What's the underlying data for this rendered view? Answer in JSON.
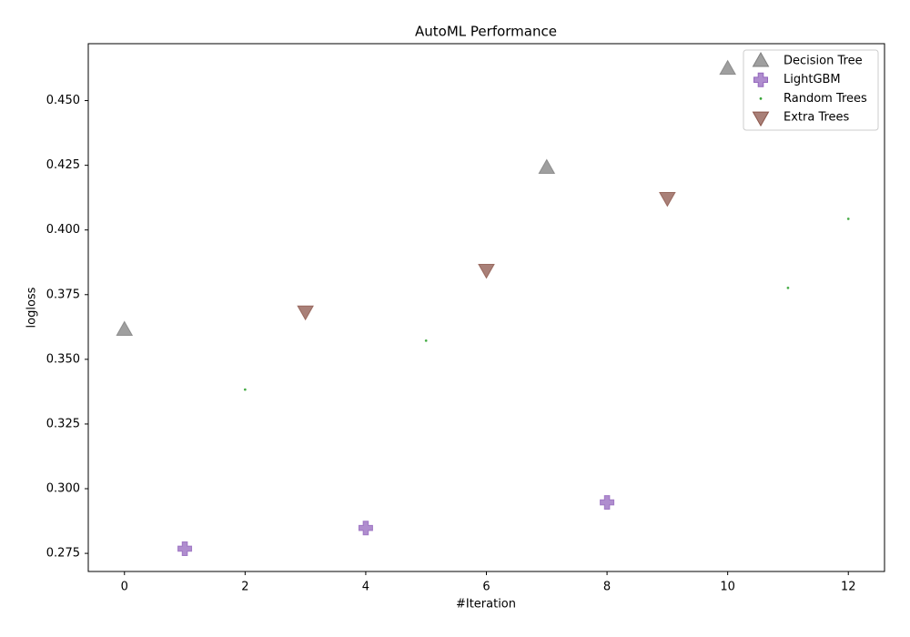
{
  "chart_data": {
    "type": "scatter",
    "title": "AutoML Performance",
    "x_label": "#Iteration",
    "y_label": "logloss",
    "xlim": [
      -0.6,
      12.6
    ],
    "xticks": [
      0,
      2,
      4,
      6,
      8,
      10,
      12
    ],
    "ylim": [
      0.268,
      0.472
    ],
    "yticks": [
      0.275,
      {
        "value": 0.3,
        "label": "0.300"
      },
      0.325,
      {
        "value": 0.35,
        "label": "0.350"
      },
      0.375,
      {
        "value": 0.4,
        "label": "0.400"
      },
      0.425,
      {
        "value": 0.45,
        "label": "0.450"
      }
    ],
    "legend": "upper right",
    "series": [
      {
        "name": "Decision Tree",
        "color": "#7f7f7f",
        "marker": "triangle-up",
        "x": [
          0,
          7,
          10
        ],
        "values": [
          0.3614,
          0.424,
          0.4623
        ]
      },
      {
        "name": "LightGBM",
        "color": "#9467bd",
        "marker": "plus",
        "x": [
          1,
          4,
          8
        ],
        "values": [
          0.2768,
          0.2848,
          0.2947
        ]
      },
      {
        "name": "Random Trees",
        "color": "#2ca02c",
        "marker": "circle",
        "x": [
          2,
          5,
          11,
          12
        ],
        "values": [
          0.3383,
          0.3572,
          0.3776,
          0.4043
        ]
      },
      {
        "name": "Extra Trees",
        "color": "#8c564b",
        "marker": "triangle-down",
        "x": [
          3,
          6,
          9
        ],
        "values": [
          0.3685,
          0.3846,
          0.4124
        ]
      }
    ]
  }
}
